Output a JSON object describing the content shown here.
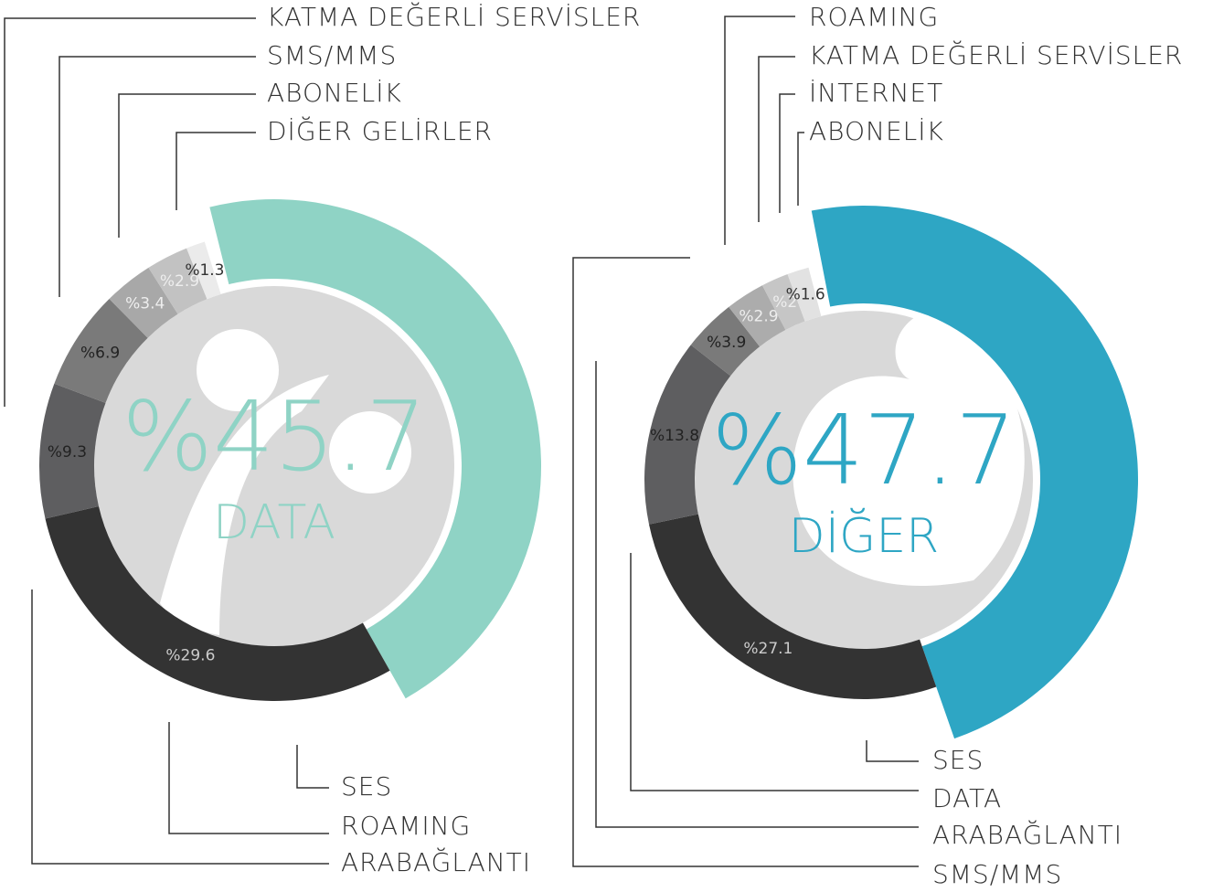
{
  "chart_data": [
    {
      "type": "donut",
      "categories": [
        "DATA",
        "SES",
        "ARABAĞLANTI",
        "ROAMING",
        "KATMA DEĞERLİ SERVİSLER",
        "SMS/MMS",
        "ABONELİK",
        "DİĞER GELİRLER"
      ],
      "values": [
        45.7,
        29.6,
        9.3,
        null,
        6.9,
        3.4,
        2.9,
        1.3
      ],
      "value_labels": [
        "%45.7",
        "%29.6",
        "%9.3",
        null,
        "%6.9",
        "%3.4",
        "%2.9",
        "%1.3"
      ],
      "colors": [
        "#8fd3c5",
        "#333333",
        "#5e5e60",
        null,
        "#7a7a7a",
        "#a8a8a8",
        "#c2c2c2",
        "#ebebeb"
      ]
    },
    {
      "type": "donut",
      "categories": [
        "DİĞER",
        "SES",
        "DATA",
        "ARABAĞLANTI",
        "SMS/MMS",
        "ROAMING",
        "KATMA DEĞERLİ SERVİSLER",
        "İNTERNET",
        "ABONELİK"
      ],
      "values": [
        47.7,
        27.1,
        13.8,
        3.9,
        null,
        null,
        2.9,
        2,
        1.6
      ],
      "value_labels": [
        "%47.7",
        "%27.1",
        "%13.8",
        "%3.9",
        null,
        null,
        "%2.9",
        "%2",
        "%1.6"
      ],
      "colors": [
        "#2ea6c4",
        "#333333",
        "#5e5e60",
        "#7a7a7a",
        null,
        null,
        "#acacac",
        "#c6c6c6",
        "#e2e2e2"
      ]
    }
  ]
}
